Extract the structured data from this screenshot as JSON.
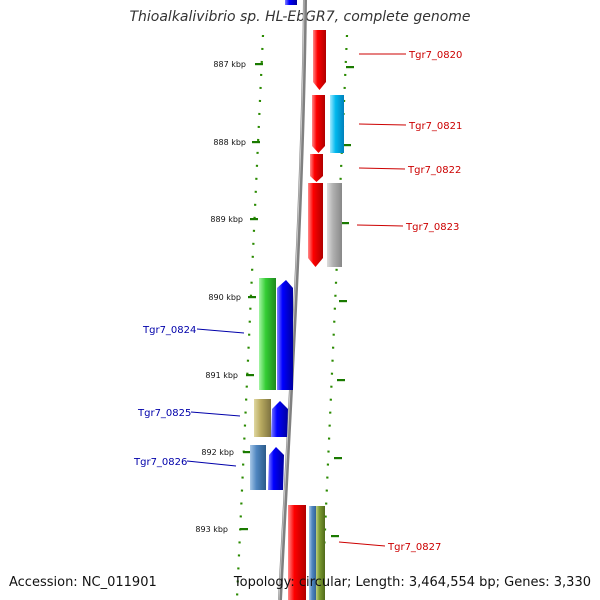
{
  "title": "Thioalkalivibrio sp. HL-EbGR7, complete genome",
  "footer": {
    "accession": "Accession: NC_011901",
    "topology": "Topology: circular; Length: 3,464,554 bp; Genes: 3,330"
  },
  "colors": {
    "forward_label": "#cc0000",
    "reverse_label": "#0000aa",
    "tick": "#1a7a00",
    "backbone": "#808080"
  },
  "kbp_ticks": [
    "887 kbp",
    "888 kbp",
    "889 kbp",
    "890 kbp",
    "891 kbp",
    "892 kbp",
    "893 kbp"
  ],
  "gene_labels": {
    "forward": [
      "Tgr7_0820",
      "Tgr7_0821",
      "Tgr7_0822",
      "Tgr7_0823",
      "Tgr7_0827"
    ],
    "reverse": [
      "Tgr7_0824",
      "Tgr7_0825",
      "Tgr7_0826"
    ]
  }
}
